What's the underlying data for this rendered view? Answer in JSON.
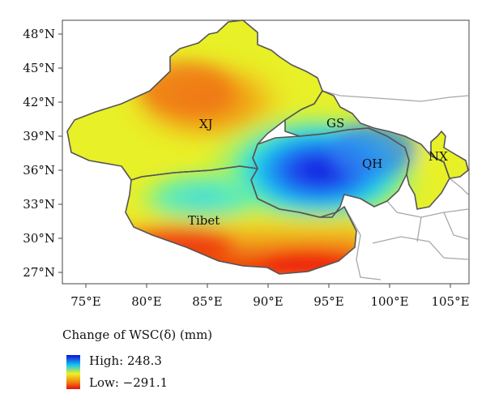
{
  "map": {
    "regions": [
      {
        "id": "xj",
        "label": "XJ"
      },
      {
        "id": "gs",
        "label": "GS"
      },
      {
        "id": "qh",
        "label": "QH"
      },
      {
        "id": "nx",
        "label": "NX"
      },
      {
        "id": "tibet",
        "label": "Tibet"
      }
    ],
    "lat_ticks": [
      "48°N",
      "45°N",
      "42°N",
      "39°N",
      "36°N",
      "33°N",
      "30°N",
      "27°N"
    ],
    "lon_ticks": [
      "75°E",
      "80°E",
      "85°E",
      "90°E",
      "95°E",
      "100°E",
      "105°E"
    ],
    "colors": {
      "high": "#1010d8",
      "mid_high": "#18c8f0",
      "mid": "#f0f020",
      "mid_low": "#f08010",
      "low": "#e81010",
      "border": "#555555",
      "outside_border": "#a8a8a8"
    }
  },
  "legend": {
    "title": "Change of WSC(δ) (mm)",
    "high_label": "High: 248.3",
    "low_label": "Low: −291.1"
  }
}
